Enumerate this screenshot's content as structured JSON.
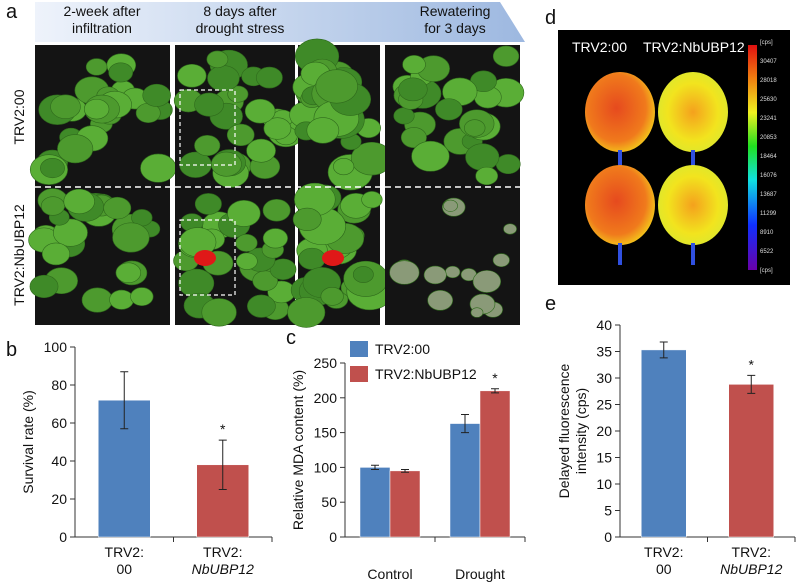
{
  "figure": {
    "panel_labels": [
      "a",
      "b",
      "c",
      "d",
      "e"
    ],
    "a": {
      "headers": [
        [
          "2-week after",
          "infiltration"
        ],
        [
          "8 days after",
          "drought stress"
        ],
        [
          "Rewatering",
          "for 3 days"
        ]
      ],
      "row_labels": [
        "TRV2:00",
        "TRV2:NbUBP12"
      ]
    },
    "d": {
      "labels": [
        "TRV2:00",
        "TRV2:NbUBP12"
      ],
      "colorbar_labels": [
        "[cps]",
        "30407",
        "28018",
        "25630",
        "23241",
        "20853",
        "18464",
        "16076",
        "13687",
        "11299",
        "8910",
        "6522",
        "[cps]"
      ]
    }
  },
  "chart_data": [
    {
      "type": "bar",
      "ylabel": [
        "Survival rate (%)"
      ],
      "categories": [
        [
          "TRV2:",
          "00"
        ],
        [
          "TRV2:",
          "NbUBP12"
        ]
      ],
      "values": [
        72,
        38
      ],
      "errors": [
        15,
        13
      ],
      "colors": [
        "#4f81bd",
        "#c0504d"
      ],
      "significant": [
        false,
        true
      ],
      "significance_label": "*",
      "ylim": [
        0,
        100
      ],
      "yticks": [
        0,
        20,
        40,
        60,
        80,
        100
      ]
    },
    {
      "type": "bar",
      "ylabel": [
        "Relative MDA content (%)"
      ],
      "categories": [
        "Control",
        "Drought"
      ],
      "series": [
        {
          "name": "TRV2:00",
          "color": "#4f81bd",
          "values": [
            100,
            163
          ],
          "errors": [
            3,
            13
          ],
          "significant": [
            false,
            false
          ]
        },
        {
          "name": "TRV2:NbUBP12",
          "color": "#c0504d",
          "values": [
            95,
            210
          ],
          "errors": [
            2,
            3
          ],
          "significant": [
            false,
            true
          ]
        }
      ],
      "significance_label": "*",
      "legend": "upper left",
      "ylim": [
        0,
        250
      ],
      "yticks": [
        0,
        50,
        100,
        150,
        200,
        250
      ]
    },
    {
      "type": "bar",
      "ylabel": [
        "Delayed fluorescence",
        "intensity  (cps)"
      ],
      "categories": [
        [
          "TRV2:",
          "00"
        ],
        [
          "TRV2:",
          "NbUBP12"
        ]
      ],
      "values": [
        35.3,
        28.8
      ],
      "errors": [
        1.5,
        1.7
      ],
      "colors": [
        "#4f81bd",
        "#c0504d"
      ],
      "significant": [
        false,
        true
      ],
      "significance_label": "*",
      "ylim": [
        0,
        40
      ],
      "yticks": [
        0,
        5,
        10,
        15,
        20,
        25,
        30,
        35,
        40
      ]
    }
  ]
}
